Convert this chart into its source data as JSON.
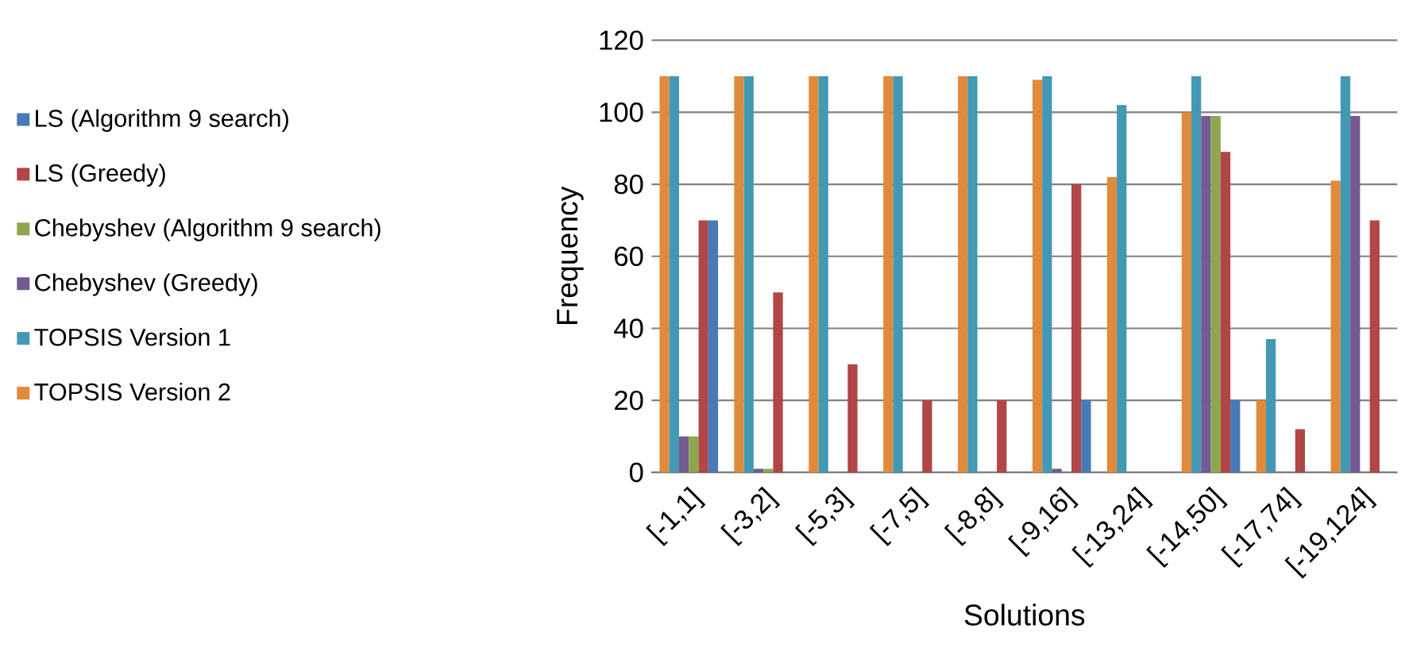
{
  "chart_data": {
    "type": "bar",
    "xlabel": "Solutions",
    "ylabel": "Frequency",
    "categories": [
      "[-1,1]",
      "[-3,2]",
      "[-5,3]",
      "[-7,5]",
      "[-8,8]",
      "[-9,16]",
      "[-13,24]",
      "[-14,50]",
      "[-17,74]",
      "[-19,124]"
    ],
    "series": [
      {
        "name": "LS (Algorithm 9 search)",
        "color": "#4a7ab5",
        "values": [
          70,
          0,
          0,
          0,
          0,
          20,
          0,
          20,
          0,
          0
        ]
      },
      {
        "name": "LS (Greedy)",
        "color": "#b04645",
        "values": [
          70,
          50,
          30,
          20,
          20,
          80,
          0,
          89,
          12,
          70
        ]
      },
      {
        "name": "Chebyshev (Algorithm 9 search)",
        "color": "#8ea64f",
        "values": [
          10,
          1,
          0,
          0,
          0,
          0,
          0,
          99,
          0,
          0
        ]
      },
      {
        "name": "Chebyshev (Greedy)",
        "color": "#735a92",
        "values": [
          10,
          1,
          0,
          0,
          0,
          1,
          0,
          99,
          0,
          99
        ]
      },
      {
        "name": "TOPSIS Version 1",
        "color": "#4399b3",
        "values": [
          110,
          110,
          110,
          110,
          110,
          110,
          102,
          110,
          37,
          110
        ]
      },
      {
        "name": "TOPSIS Version 2",
        "color": "#e08a3c",
        "values": [
          110,
          110,
          110,
          110,
          110,
          109,
          82,
          100,
          20,
          81
        ]
      }
    ],
    "ylim": [
      0,
      120
    ],
    "yticks": [
      0,
      20,
      40,
      60,
      80,
      100,
      120
    ],
    "grid": "y",
    "legend": "left"
  }
}
